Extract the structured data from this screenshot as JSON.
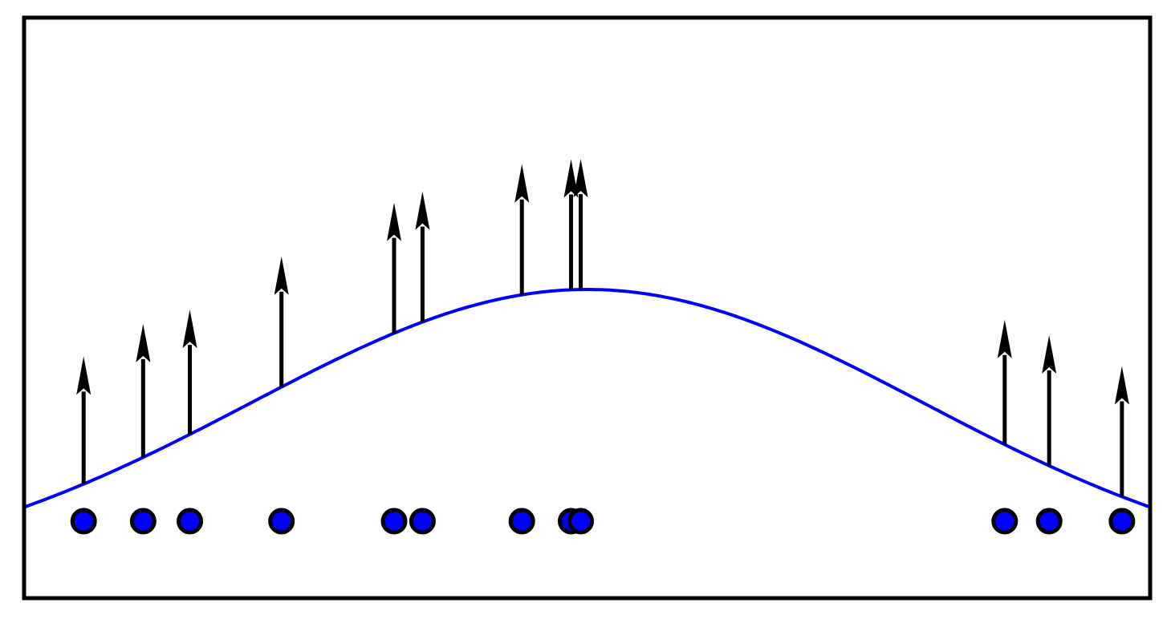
{
  "diagram": {
    "description_free": true,
    "curve": {
      "type": "gaussian-bump",
      "color": "#0000ff",
      "peak_x": 0.5
    },
    "colors": {
      "frame": "#000000",
      "curve": "#0000ff",
      "point_fill": "#0000ff",
      "point_stroke": "#000000",
      "arrow": "#000000"
    },
    "points": [
      {
        "x": 0.0516,
        "arrow_length": 0.22
      },
      {
        "x": 0.1046,
        "arrow_length": 0.23
      },
      {
        "x": 0.1462,
        "arrow_length": 0.215
      },
      {
        "x": 0.2278,
        "arrow_length": 0.225
      },
      {
        "x": 0.3281,
        "arrow_length": 0.225
      },
      {
        "x": 0.3534,
        "arrow_length": 0.225
      },
      {
        "x": 0.4419,
        "arrow_length": 0.225
      },
      {
        "x": 0.4857,
        "arrow_length": 0.225
      },
      {
        "x": 0.4943,
        "arrow_length": 0.225
      },
      {
        "x": 0.8719,
        "arrow_length": 0.215
      },
      {
        "x": 0.9115,
        "arrow_length": 0.225
      },
      {
        "x": 0.9763,
        "arrow_length": 0.225
      }
    ]
  }
}
